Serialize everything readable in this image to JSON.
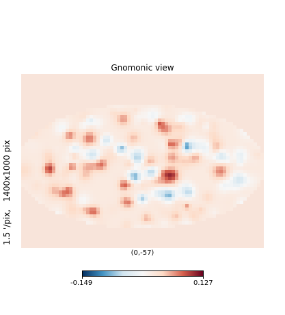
{
  "chart_data": {
    "type": "heatmap",
    "title": "Gnomonic view",
    "side_label": "1.5 '/pix,   1400x1000 pix",
    "center_label": "(0,-57)",
    "colormap": "RdBu_r",
    "colorbar": {
      "min": -0.149,
      "max": 0.127,
      "min_label": "-0.149",
      "max_label": "0.127"
    },
    "background_value_color": "#f8e4da",
    "colors": {
      "deep_blue": "#053061",
      "mid_blue": "#4393c3",
      "light_blue": "#d1e5f0",
      "white": "#f7f7f7",
      "light_red": "#fddbc7",
      "mid_red": "#d6604d",
      "deep_red": "#67001f"
    }
  }
}
